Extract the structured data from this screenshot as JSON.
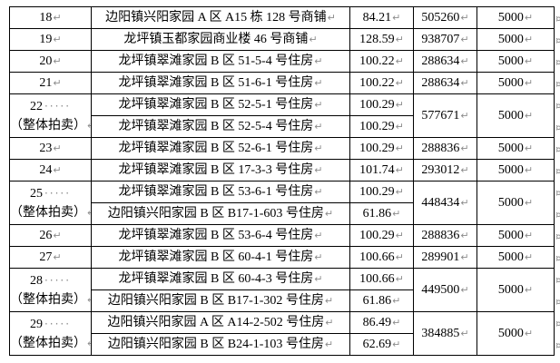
{
  "document": {
    "group_label": "（整体拍卖）",
    "marks": {
      "paragraph": "↵",
      "space_dots": "·····",
      "end_of_row": "¤"
    },
    "colors": {
      "background": "#ffffff",
      "border": "#000000",
      "text": "#000000",
      "marks": "#8c8c8c"
    },
    "rows": [
      {
        "no": "18",
        "group": false,
        "items": [
          {
            "desc": "边阳镇兴阳家园 A 区 A15 栋 128 号商铺",
            "area": "84.21"
          }
        ],
        "price": "505260",
        "deposit": "5000"
      },
      {
        "no": "19",
        "group": false,
        "items": [
          {
            "desc": "龙坪镇玉都家园商业楼 46 号商铺",
            "area": "128.59"
          }
        ],
        "price": "938707",
        "deposit": "5000"
      },
      {
        "no": "20",
        "group": false,
        "items": [
          {
            "desc": "龙坪镇翠滩家园 B 区 51-5-4 号住房",
            "area": "100.22"
          }
        ],
        "price": "288634",
        "deposit": "5000"
      },
      {
        "no": "21",
        "group": false,
        "items": [
          {
            "desc": "龙坪镇翠滩家园 B 区 51-6-1 号住房",
            "area": "100.22"
          }
        ],
        "price": "288634",
        "deposit": "5000"
      },
      {
        "no": "22",
        "group": true,
        "items": [
          {
            "desc": "龙坪镇翠滩家园 B 区 52-5-1 号住房",
            "area": "100.29"
          },
          {
            "desc": "龙坪镇翠滩家园 B 区 52-5-4 号住房",
            "area": "100.29"
          }
        ],
        "price": "577671",
        "deposit": "5000"
      },
      {
        "no": "23",
        "group": false,
        "items": [
          {
            "desc": "龙坪镇翠滩家园 B 区 52-6-1 号住房",
            "area": "100.29"
          }
        ],
        "price": "288836",
        "deposit": "5000"
      },
      {
        "no": "24",
        "group": false,
        "items": [
          {
            "desc": "龙坪镇翠滩家园 B 区 17-3-3 号住房",
            "area": "101.74"
          }
        ],
        "price": "293012",
        "deposit": "5000"
      },
      {
        "no": "25",
        "group": true,
        "items": [
          {
            "desc": "龙坪镇翠滩家园 B 区 53-6-1 号住房",
            "area": "100.29"
          },
          {
            "desc": "边阳镇兴阳家园 B 区 B17-1-603 号住房",
            "area": "61.86"
          }
        ],
        "price": "448434",
        "deposit": "5000"
      },
      {
        "no": "26",
        "group": false,
        "items": [
          {
            "desc": "龙坪镇翠滩家园 B 区 53-6-4 号住房",
            "area": "100.29"
          }
        ],
        "price": "288836",
        "deposit": "5000"
      },
      {
        "no": "27",
        "group": false,
        "items": [
          {
            "desc": "龙坪镇翠滩家园 B 区 60-4-1 号住房",
            "area": "100.66"
          }
        ],
        "price": "289901",
        "deposit": "5000"
      },
      {
        "no": "28",
        "group": true,
        "items": [
          {
            "desc": "龙坪镇翠滩家园 B 区 60-4-3 号住房",
            "area": "100.66"
          },
          {
            "desc": "边阳镇兴阳家园 B 区 B17-1-302 号住房",
            "area": "61.86"
          }
        ],
        "price": "449500",
        "deposit": "5000"
      },
      {
        "no": "29",
        "group": true,
        "items": [
          {
            "desc": "边阳镇兴阳家园 A 区 A14-2-502 号住房",
            "area": "86.49"
          },
          {
            "desc": "边阳镇兴阳家园 B 区 B24-1-103 号住房",
            "area": "62.69"
          }
        ],
        "price": "384885",
        "deposit": "5000"
      }
    ]
  }
}
